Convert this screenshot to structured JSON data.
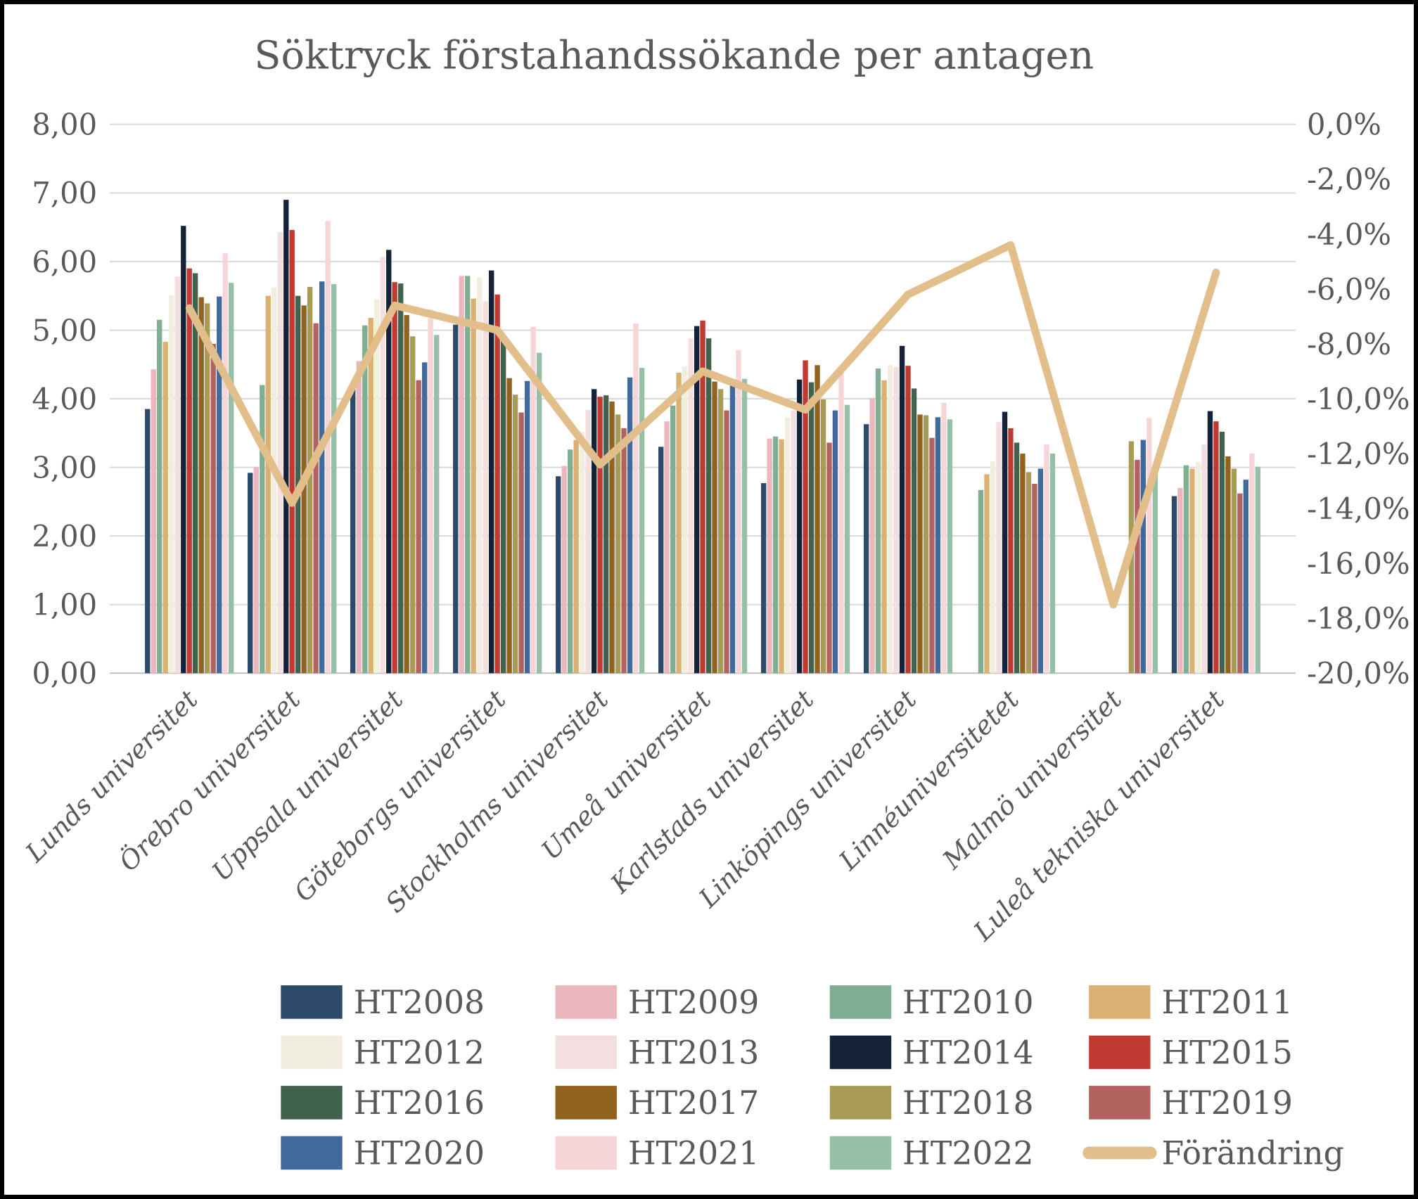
{
  "title": "Söktryck förstahandssökande per antagen",
  "left_axis": {
    "ticks": [
      "8,00",
      "7,00",
      "6,00",
      "5,00",
      "4,00",
      "3,00",
      "2,00",
      "1,00",
      "0,00"
    ],
    "min": 0,
    "max": 8
  },
  "right_axis": {
    "ticks": [
      "0,0%",
      "-2,0%",
      "-4,0%",
      "-6,0%",
      "-8,0%",
      "-10,0%",
      "-12,0%",
      "-14,0%",
      "-16,0%",
      "-18,0%",
      "-20,0%"
    ],
    "min": -20,
    "max": 0
  },
  "colors": {
    "text": "#595959",
    "gridline": "#d9d9d9",
    "axis_line": "#bfbfbf",
    "line_series": "#e2be8b",
    "frame_border": "#000000"
  },
  "chart_data": {
    "type": "bar",
    "title": "Söktryck förstahandssökande per antagen",
    "grid": true,
    "legend_position": "bottom",
    "ylim_left": [
      0,
      8
    ],
    "ylim_right_pct": [
      -20,
      0
    ],
    "categories": [
      "Lunds universitet",
      "Örebro universitet",
      "Uppsala universitet",
      "Göteborgs universitet",
      "Stockholms universitet",
      "Umeå universitet",
      "Karlstads universitet",
      "Linköpings universitet",
      "Linnéuniversitetet",
      "Malmö universitet",
      "Luleå tekniska universitet"
    ],
    "series": [
      {
        "name": "HT2008",
        "color": "#2e4a6b",
        "values": [
          3.85,
          2.92,
          4.22,
          5.08,
          2.87,
          3.3,
          2.77,
          3.63,
          null,
          null,
          2.58
        ]
      },
      {
        "name": "HT2009",
        "color": "#ebb6bc",
        "values": [
          4.43,
          3.0,
          4.55,
          5.79,
          3.02,
          3.67,
          3.42,
          4.01,
          null,
          null,
          2.7
        ]
      },
      {
        "name": "HT2010",
        "color": "#7fae93",
        "values": [
          5.15,
          4.2,
          5.07,
          5.79,
          3.26,
          3.9,
          3.45,
          4.44,
          2.67,
          null,
          3.03
        ]
      },
      {
        "name": "HT2011",
        "color": "#dbb173",
        "values": [
          4.83,
          5.5,
          5.18,
          5.46,
          3.4,
          4.38,
          3.41,
          4.27,
          2.9,
          null,
          2.98
        ]
      },
      {
        "name": "HT2012",
        "color": "#f1eee0",
        "values": [
          5.51,
          5.62,
          5.45,
          5.77,
          3.52,
          4.47,
          3.73,
          4.49,
          3.09,
          null,
          3.08
        ]
      },
      {
        "name": "HT2013",
        "color": "#f3dfdf",
        "values": [
          5.78,
          6.43,
          6.07,
          5.42,
          3.84,
          4.88,
          3.83,
          4.46,
          3.66,
          null,
          3.33
        ]
      },
      {
        "name": "HT2014",
        "color": "#152338",
        "values": [
          6.52,
          6.9,
          6.17,
          5.87,
          4.14,
          5.06,
          4.28,
          4.77,
          3.81,
          null,
          3.82
        ]
      },
      {
        "name": "HT2015",
        "color": "#c03a32",
        "values": [
          5.9,
          6.46,
          5.7,
          5.52,
          4.03,
          5.14,
          4.56,
          4.48,
          3.57,
          null,
          3.67
        ]
      },
      {
        "name": "HT2016",
        "color": "#41634d",
        "values": [
          5.83,
          5.5,
          5.68,
          4.88,
          4.05,
          4.88,
          4.24,
          4.15,
          3.36,
          null,
          3.52
        ]
      },
      {
        "name": "HT2017",
        "color": "#92631f",
        "values": [
          5.48,
          5.36,
          5.22,
          4.3,
          3.96,
          4.25,
          4.49,
          3.77,
          3.2,
          null,
          3.16
        ]
      },
      {
        "name": "HT2018",
        "color": "#a89c55",
        "values": [
          5.39,
          5.63,
          4.91,
          4.06,
          3.77,
          4.14,
          3.99,
          3.76,
          2.93,
          3.38,
          2.98
        ]
      },
      {
        "name": "HT2019",
        "color": "#b2635f",
        "values": [
          4.8,
          5.1,
          4.27,
          3.8,
          3.57,
          3.83,
          3.36,
          3.43,
          2.76,
          3.11,
          2.62
        ]
      },
      {
        "name": "HT2020",
        "color": "#41699c",
        "values": [
          5.49,
          5.71,
          4.53,
          4.26,
          4.31,
          4.28,
          3.83,
          3.73,
          2.98,
          3.4,
          2.82
        ]
      },
      {
        "name": "HT2021",
        "color": "#f6d5d8",
        "values": [
          6.12,
          6.59,
          5.3,
          5.05,
          5.1,
          4.71,
          4.42,
          3.94,
          3.33,
          3.72,
          3.2
        ]
      },
      {
        "name": "HT2022",
        "color": "#96bfa7",
        "values": [
          5.69,
          5.67,
          4.93,
          4.67,
          4.45,
          4.29,
          3.91,
          3.7,
          3.2,
          3.05,
          3.01
        ]
      }
    ],
    "line_series": {
      "name": "Förändring",
      "color": "#e2be8b",
      "axis": "right",
      "values_pct": [
        -6.7,
        -13.8,
        -6.6,
        -7.5,
        -12.4,
        -9.0,
        -10.4,
        -6.2,
        -4.4,
        -17.5,
        -5.4
      ]
    }
  }
}
